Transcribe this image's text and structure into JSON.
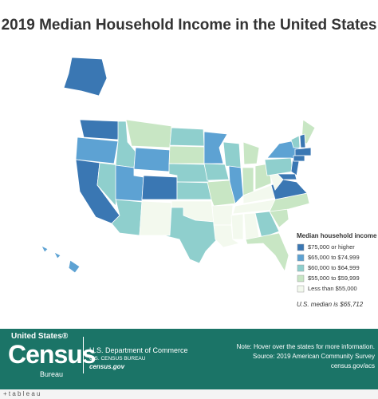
{
  "title": "2019 Median Household Income in the United States",
  "legend": {
    "title": "Median household income",
    "items": [
      {
        "label": "$75,000 or higher",
        "color": "#3a77b3"
      },
      {
        "label": "$65,000 to $74,999",
        "color": "#5da2d3"
      },
      {
        "label": "$60,000 to $64,999",
        "color": "#8fcfcd"
      },
      {
        "label": "$55,000 to $59,999",
        "color": "#c8e6c4"
      },
      {
        "label": "Less than $55,000",
        "color": "#f3f9ee"
      }
    ]
  },
  "median_note": "U.S. median is $65,712",
  "footer": {
    "logo_top": "United States®",
    "logo_main": "Census",
    "logo_sub": "Bureau",
    "dept": "U.S. Department of Commerce",
    "bureau": "U.S. CENSUS BUREAU",
    "site": "census.gov",
    "note": "Note: Hover over the states for more information.",
    "source": "Source: 2019 American Community Survey",
    "link": "census.gov/acs"
  },
  "brand": "+ t a b l e a u"
}
